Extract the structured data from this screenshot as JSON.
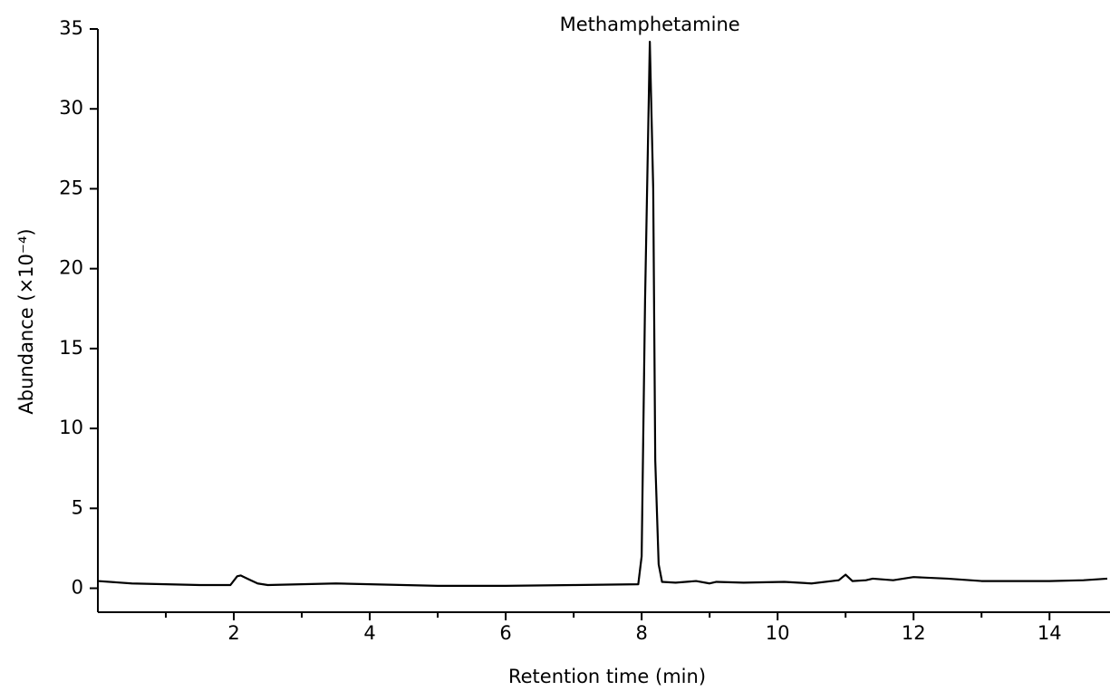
{
  "chart_data": {
    "type": "line",
    "xlabel": "Retention time (min)",
    "ylabel": "Abundance (×10⁻⁴)",
    "annotation": "Methamphetamine",
    "color": "#000000",
    "x": [
      0,
      0.5,
      1,
      1.5,
      1.95,
      2.05,
      2.1,
      2.2,
      2.35,
      2.5,
      3,
      3.5,
      4,
      5,
      6,
      7,
      7.95,
      8.0,
      8.05,
      8.12,
      8.17,
      8.2,
      8.25,
      8.3,
      8.5,
      8.8,
      9.0,
      9.1,
      9.5,
      10.1,
      10.5,
      10.9,
      11.0,
      11.1,
      11.3,
      11.4,
      11.7,
      12,
      12.5,
      13,
      13.5,
      14,
      14.5,
      14.85
    ],
    "values": [
      0.45,
      0.3,
      0.25,
      0.2,
      0.2,
      0.75,
      0.8,
      0.6,
      0.3,
      0.2,
      0.25,
      0.3,
      0.25,
      0.15,
      0.15,
      0.2,
      0.25,
      2,
      18,
      34.2,
      25,
      8,
      1.5,
      0.4,
      0.35,
      0.45,
      0.3,
      0.4,
      0.35,
      0.4,
      0.3,
      0.5,
      0.85,
      0.45,
      0.5,
      0.6,
      0.5,
      0.7,
      0.6,
      0.45,
      0.45,
      0.45,
      0.5,
      0.6
    ],
    "xlim": [
      0,
      14.85
    ],
    "ylim": [
      -1.5,
      35
    ],
    "xticks": [
      2,
      4,
      6,
      8,
      10,
      12,
      14
    ],
    "xminor_ticks": [
      1,
      3,
      5,
      7,
      9,
      11,
      13
    ],
    "yticks": [
      0,
      5,
      10,
      15,
      20,
      25,
      30,
      35
    ]
  }
}
